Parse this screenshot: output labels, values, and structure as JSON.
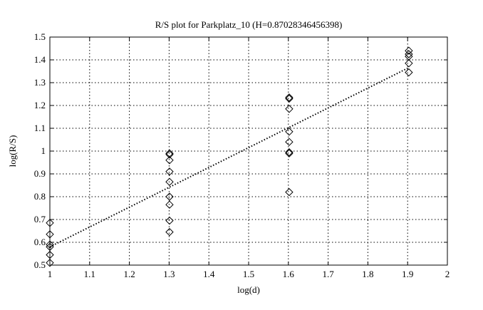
{
  "chart_data": {
    "type": "scatter",
    "title": "R/S plot for Parkplatz_10 (H=0.87028346456398)",
    "xlabel": "log(d)",
    "ylabel": "log(R/S)",
    "xlim": [
      1,
      2
    ],
    "ylim": [
      0.5,
      1.5
    ],
    "xticks": [
      "1",
      "1.1",
      "1.2",
      "1.3",
      "1.4",
      "1.5",
      "1.6",
      "1.7",
      "1.8",
      "1.9",
      "2"
    ],
    "yticks": [
      "0.5",
      "0.6",
      "0.7",
      "0.8",
      "0.9",
      "1",
      "1.1",
      "1.2",
      "1.3",
      "1.4",
      "1.5"
    ],
    "grid": true,
    "marker": "diamond",
    "points": [
      [
        1,
        0.685
      ],
      [
        1,
        0.635
      ],
      [
        1,
        0.59
      ],
      [
        1,
        0.58
      ],
      [
        1,
        0.545
      ],
      [
        1,
        0.51
      ],
      [
        1.301,
        0.99
      ],
      [
        1.301,
        0.985
      ],
      [
        1.301,
        0.96
      ],
      [
        1.301,
        0.91
      ],
      [
        1.301,
        0.865
      ],
      [
        1.301,
        0.8
      ],
      [
        1.301,
        0.765
      ],
      [
        1.301,
        0.695
      ],
      [
        1.301,
        0.645
      ],
      [
        1.602,
        1.235
      ],
      [
        1.602,
        1.23
      ],
      [
        1.602,
        1.185
      ],
      [
        1.602,
        1.085
      ],
      [
        1.602,
        1.04
      ],
      [
        1.602,
        0.995
      ],
      [
        1.602,
        0.99
      ],
      [
        1.602,
        0.82
      ],
      [
        1.903,
        1.44
      ],
      [
        1.903,
        1.425
      ],
      [
        1.903,
        1.415
      ],
      [
        1.903,
        1.385
      ],
      [
        1.903,
        1.345
      ]
    ],
    "fit_line": {
      "slope": 0.87028346456398,
      "intercept": 0.58,
      "x_range": [
        1,
        1.903
      ],
      "style": "dotted"
    }
  }
}
